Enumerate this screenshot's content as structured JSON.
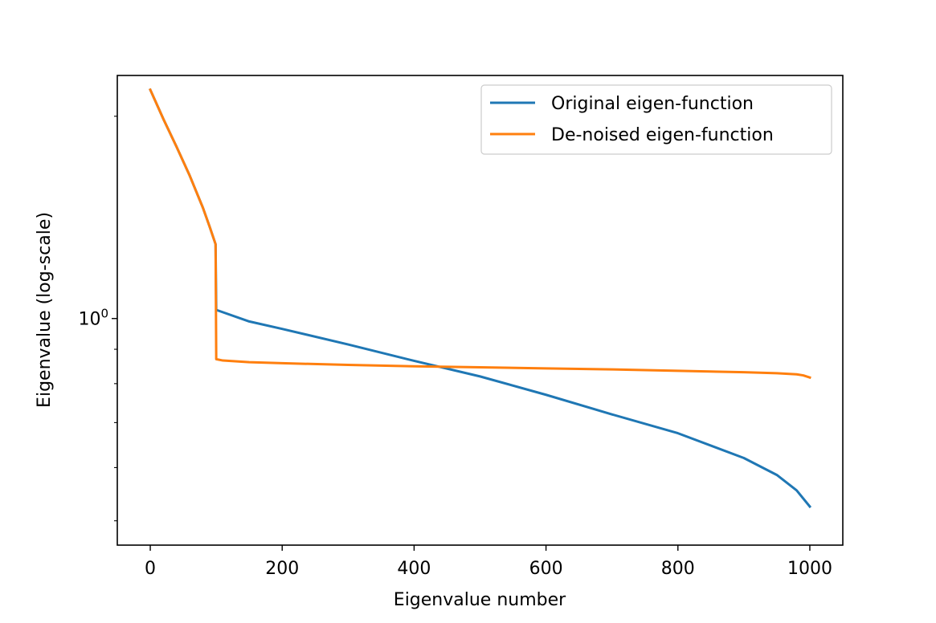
{
  "chart_data": {
    "type": "line",
    "title": "",
    "xlabel": "Eigenvalue number",
    "ylabel": "Eigenvalue (log-scale)",
    "y_scale": "log",
    "xlim": [
      -50,
      1050
    ],
    "ylim": [
      0.46,
      2.3
    ],
    "x_ticks": [
      0,
      200,
      400,
      600,
      800,
      1000
    ],
    "y_ticks_major": [
      {
        "value": 1,
        "label": "10",
        "exponent": "0"
      }
    ],
    "y_ticks_minor": [
      0.5,
      0.6,
      0.7,
      0.8,
      0.9,
      2
    ],
    "grid": false,
    "legend_position": "top-right",
    "series": [
      {
        "name": "Original eigen-function",
        "color": "#1f77b4",
        "x": [
          0,
          20,
          40,
          60,
          80,
          90,
          99,
          100,
          150,
          200,
          300,
          400,
          500,
          600,
          700,
          800,
          900,
          950,
          980,
          1000
        ],
        "y": [
          2.19,
          1.98,
          1.8,
          1.63,
          1.46,
          1.37,
          1.29,
          1.03,
          0.99,
          0.965,
          0.915,
          0.865,
          0.82,
          0.77,
          0.72,
          0.675,
          0.62,
          0.585,
          0.555,
          0.525
        ]
      },
      {
        "name": "De-noised eigen-function",
        "color": "#ff7f0e",
        "x": [
          0,
          20,
          40,
          60,
          80,
          90,
          99,
          100,
          110,
          150,
          200,
          300,
          400,
          500,
          600,
          700,
          800,
          900,
          950,
          980,
          990,
          1000
        ],
        "y": [
          2.19,
          1.98,
          1.8,
          1.63,
          1.46,
          1.37,
          1.29,
          0.87,
          0.866,
          0.861,
          0.858,
          0.853,
          0.849,
          0.846,
          0.843,
          0.84,
          0.836,
          0.832,
          0.829,
          0.826,
          0.823,
          0.817
        ]
      }
    ]
  }
}
